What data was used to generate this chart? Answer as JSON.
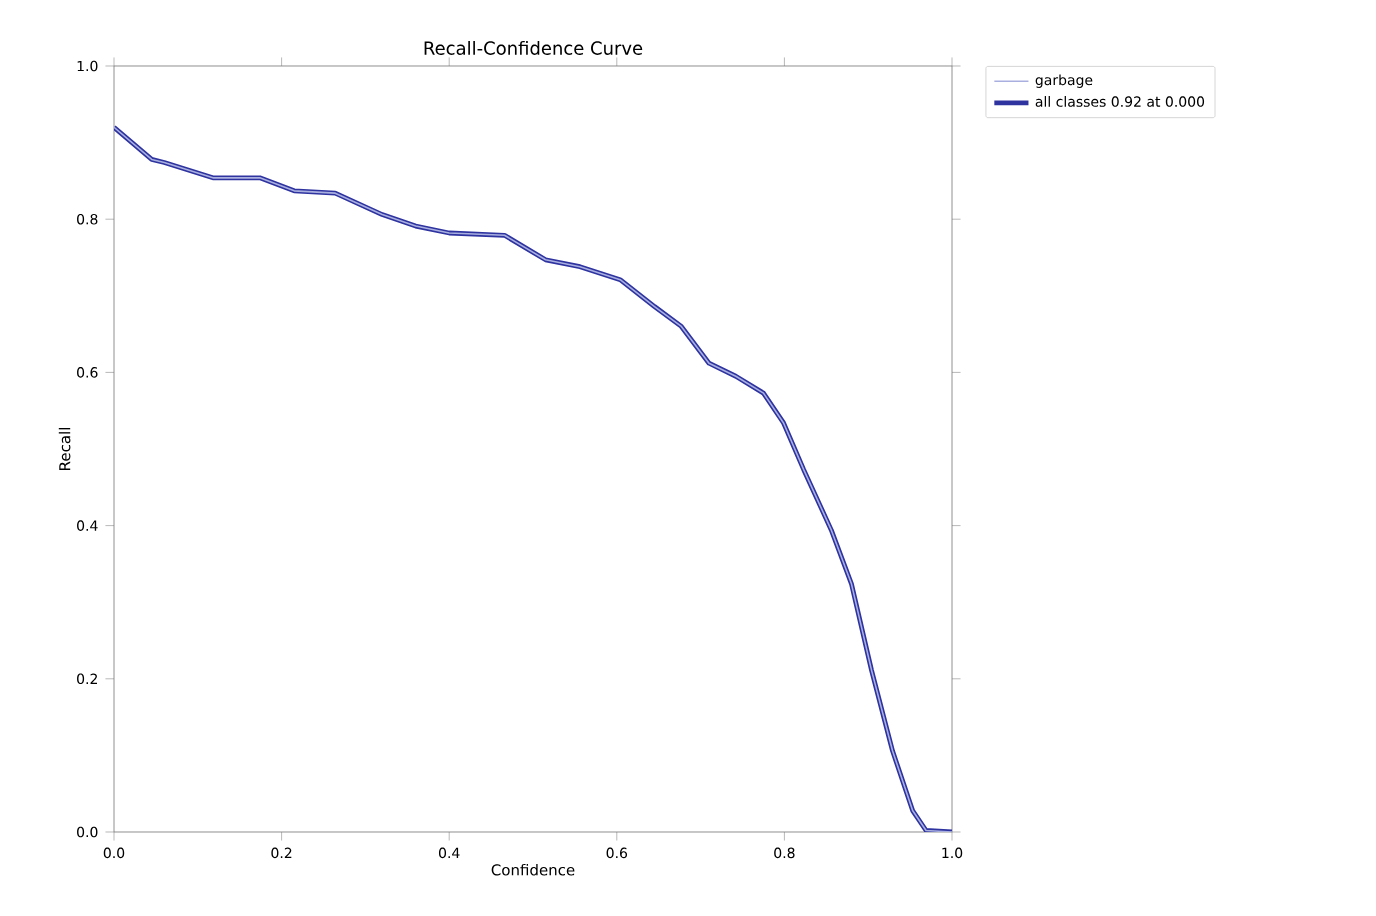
{
  "chart_data": {
    "type": "line",
    "title": "Recall-Confidence Curve",
    "xlabel": "Confidence",
    "ylabel": "Recall",
    "xlim": [
      0,
      1
    ],
    "ylim": [
      0,
      1
    ],
    "xticks": [
      {
        "value": 0,
        "label": "0.0"
      },
      {
        "value": 0.2,
        "label": "0.2"
      },
      {
        "value": 0.4,
        "label": "0.4"
      },
      {
        "value": 0.6,
        "label": "0.6"
      },
      {
        "value": 0.8,
        "label": "0.8"
      },
      {
        "value": 1,
        "label": "1.0"
      }
    ],
    "yticks": [
      {
        "value": 0,
        "label": "0.0"
      },
      {
        "value": 0.2,
        "label": "0.2"
      },
      {
        "value": 0.4,
        "label": "0.4"
      },
      {
        "value": 0.6,
        "label": "0.6"
      },
      {
        "value": 0.8,
        "label": "0.8"
      },
      {
        "value": 1,
        "label": "1.0"
      }
    ],
    "legend": "top right",
    "marker": "none",
    "line_style": "solid",
    "series": [
      {
        "name": "garbage",
        "color": "#a9b0e0",
        "x": [
          0,
          0.045,
          0.06,
          0.118,
          0.174,
          0.215,
          0.264,
          0.32,
          0.36,
          0.4,
          0.466,
          0.515,
          0.556,
          0.604,
          0.645,
          0.677,
          0.71,
          0.742,
          0.775,
          0.799,
          0.823,
          0.856,
          0.88,
          0.904,
          0.929,
          0.953,
          0.969,
          1.0
        ],
        "values": [
          0.92,
          0.878,
          0.874,
          0.854,
          0.854,
          0.837,
          0.834,
          0.806,
          0.791,
          0.782,
          0.779,
          0.747,
          0.738,
          0.721,
          0.686,
          0.66,
          0.612,
          0.595,
          0.573,
          0.534,
          0.473,
          0.394,
          0.324,
          0.211,
          0.106,
          0.028,
          0.002,
          0
        ]
      },
      {
        "name": "all classes 0.92 at 0.000",
        "color": "#2e33a0",
        "x": [
          0,
          0.045,
          0.06,
          0.118,
          0.174,
          0.215,
          0.264,
          0.32,
          0.36,
          0.4,
          0.466,
          0.515,
          0.556,
          0.604,
          0.645,
          0.677,
          0.71,
          0.742,
          0.775,
          0.799,
          0.823,
          0.856,
          0.88,
          0.904,
          0.929,
          0.953,
          0.969,
          1.0
        ],
        "values": [
          0.92,
          0.878,
          0.874,
          0.854,
          0.854,
          0.837,
          0.834,
          0.806,
          0.791,
          0.782,
          0.779,
          0.747,
          0.738,
          0.721,
          0.686,
          0.66,
          0.612,
          0.595,
          0.573,
          0.534,
          0.473,
          0.394,
          0.324,
          0.211,
          0.106,
          0.028,
          0.002,
          0
        ]
      }
    ]
  }
}
